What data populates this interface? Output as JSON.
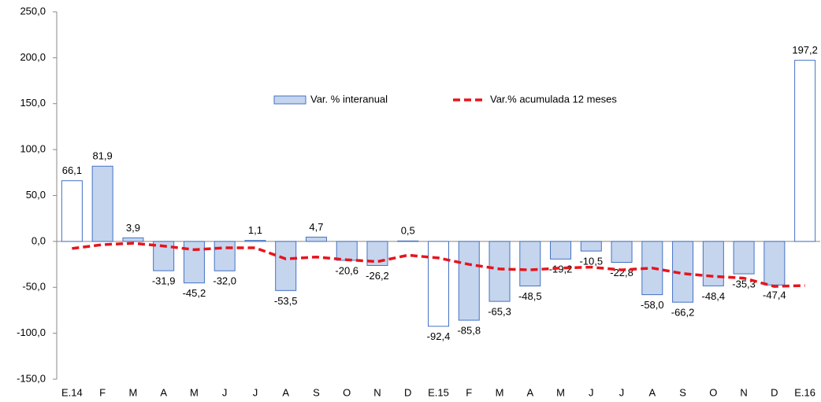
{
  "chart_data": {
    "type": "bar-line",
    "categories": [
      "E.14",
      "F",
      "M",
      "A",
      "M",
      "J",
      "J",
      "A",
      "S",
      "O",
      "N",
      "D",
      "E.15",
      "F",
      "M",
      "A",
      "M",
      "J",
      "J",
      "A",
      "S",
      "O",
      "N",
      "D",
      "E.16"
    ],
    "series": [
      {
        "name": "Var. % interanual",
        "type": "bar",
        "color": "#c5d5ee",
        "point_colors": [
          "#ffffff",
          "#c5d5ee",
          "#c5d5ee",
          "#c5d5ee",
          "#c5d5ee",
          "#c5d5ee",
          "#c5d5ee",
          "#c5d5ee",
          "#c5d5ee",
          "#c5d5ee",
          "#c5d5ee",
          "#c5d5ee",
          "#ffffff",
          "#c5d5ee",
          "#c5d5ee",
          "#c5d5ee",
          "#c5d5ee",
          "#c5d5ee",
          "#c5d5ee",
          "#c5d5ee",
          "#c5d5ee",
          "#c5d5ee",
          "#c5d5ee",
          "#c5d5ee",
          "#ffffff"
        ],
        "values": [
          66.1,
          81.9,
          3.9,
          -31.9,
          -45.2,
          -32.0,
          1.1,
          -53.5,
          4.7,
          -20.6,
          -26.2,
          0.5,
          -92.4,
          -85.8,
          -65.3,
          -48.5,
          -19.2,
          -10.5,
          -22.8,
          -58.0,
          -66.2,
          -48.4,
          -35.3,
          -47.4,
          197.2
        ],
        "value_labels": [
          "66,1",
          "81,9",
          "3,9",
          "-31,9",
          "-45,2",
          "-32,0",
          "1,1",
          "-53,5",
          "4,7",
          "-20,6",
          "-26,2",
          "0,5",
          "-92,4",
          "-85,8",
          "-65,3",
          "-48,5",
          "-19,2",
          "-10,5",
          "-22,8",
          "-58,0",
          "-66,2",
          "-48,4",
          "-35,3",
          "-47,4",
          "197,2"
        ]
      },
      {
        "name": "Var.% acumulada 12 meses",
        "type": "line",
        "color": "#e8141b",
        "values": [
          -7.7,
          -3.5,
          -2,
          -5,
          -9,
          -7,
          -7,
          -19,
          -17,
          -20,
          -22,
          -15,
          -18,
          -25,
          -30,
          -31,
          -29,
          -28,
          -31,
          -29,
          -35,
          -38,
          -40,
          -49,
          -48
        ]
      }
    ],
    "ylim": [
      -150,
      250
    ],
    "yticks": [
      {
        "value": -150,
        "label": "-150,0"
      },
      {
        "value": -100,
        "label": "-100,0"
      },
      {
        "value": -50,
        "label": "-50,0"
      },
      {
        "value": 0,
        "label": "0,0"
      },
      {
        "value": 50,
        "label": "50,0"
      },
      {
        "value": 100,
        "label": "100,0"
      },
      {
        "value": 150,
        "label": "150,0"
      },
      {
        "value": 200,
        "label": "200,0"
      },
      {
        "value": 250,
        "label": "250,0"
      }
    ],
    "axis_color": "#4472c4"
  }
}
